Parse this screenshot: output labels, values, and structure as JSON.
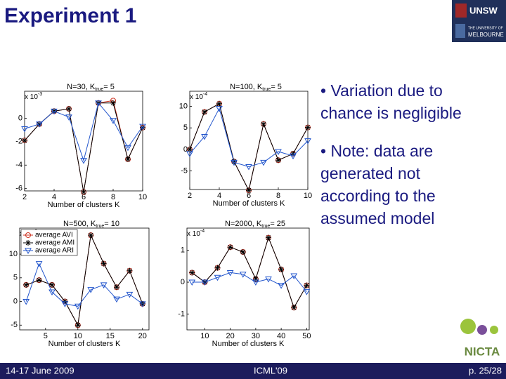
{
  "header": {
    "title": "Experiment 1"
  },
  "logos": {
    "unsw": "UNSW",
    "melbourne_line1": "THE UNIVERSITY OF",
    "melbourne_line2": "MELBOURNE",
    "nicta": "NICTA"
  },
  "bullets": [
    "• Variation due to chance is negligible",
    "• Note: data are generated not according to the assumed model"
  ],
  "footer": {
    "date": "14-17 June 2009",
    "venue": "ICML'09",
    "page": "p. 25/28"
  },
  "chart_data": [
    {
      "type": "line",
      "title": "N=30, K",
      "title_sub": "true",
      "title_end": "= 5",
      "x_label": "Number of clusters K",
      "scale_label": "x 10",
      "scale_exponent": "-3",
      "x": [
        2,
        3,
        4,
        5,
        6,
        7,
        8,
        9,
        10
      ],
      "xlim": [
        2,
        10
      ],
      "xticks": [
        2,
        4,
        6,
        8,
        10
      ],
      "ylim": [
        -6.2,
        2.3
      ],
      "yticks": [
        -6,
        -4,
        -2,
        0
      ],
      "series": [
        {
          "color": "#cc3322",
          "marker": "circle",
          "values": [
            -1.9,
            -0.5,
            0.6,
            0.8,
            -6.3,
            1.3,
            1.5,
            -3.5,
            -0.8
          ]
        },
        {
          "color": "#000000",
          "marker": "star",
          "values": [
            -1.9,
            -0.5,
            0.6,
            0.8,
            -6.3,
            1.3,
            1.3,
            -3.5,
            -0.8
          ]
        },
        {
          "color": "#2255cc",
          "marker": "triangle",
          "values": [
            -0.9,
            -0.5,
            0.6,
            0.1,
            -3.6,
            1.3,
            -0.2,
            -2.5,
            -0.7
          ]
        }
      ]
    },
    {
      "type": "line",
      "title": "N=100, K",
      "title_sub": "true",
      "title_end": "= 5",
      "x_label": "Number of clusters K",
      "scale_label": "x 10",
      "scale_exponent": "-4",
      "x": [
        2,
        3,
        4,
        5,
        6,
        7,
        8,
        9,
        10
      ],
      "xlim": [
        2,
        10
      ],
      "xticks": [
        2,
        4,
        6,
        8,
        10
      ],
      "ylim": [
        -9.3,
        13.5
      ],
      "yticks": [
        -5,
        0,
        5,
        10
      ],
      "series": [
        {
          "color": "#cc3322",
          "marker": "circle",
          "values": [
            0,
            8.7,
            10.6,
            -2.8,
            -9.5,
            5.9,
            -2.5,
            -1,
            5.1
          ]
        },
        {
          "color": "#000000",
          "marker": "star",
          "values": [
            0,
            8.7,
            10.6,
            -2.8,
            -9.5,
            5.9,
            -2.5,
            -1,
            5.1
          ]
        },
        {
          "color": "#2255cc",
          "marker": "triangle",
          "values": [
            -1,
            3,
            9.5,
            -3,
            -4,
            -3,
            -0.5,
            -1.5,
            2
          ]
        }
      ]
    },
    {
      "type": "line",
      "title": "N=500, K",
      "title_sub": "true",
      "title_end": "= 10",
      "x_label": "Number of clusters K",
      "scale_label": "x 10",
      "scale_exponent": "-3",
      "x": [
        2,
        4,
        6,
        8,
        10,
        12,
        14,
        16,
        18,
        20
      ],
      "xlim": [
        1,
        21
      ],
      "xticks": [
        5,
        10,
        15,
        20
      ],
      "ylim": [
        -6,
        15.5
      ],
      "yticks": [
        -5,
        0,
        5,
        10
      ],
      "legend": "upper left",
      "series": [
        {
          "name": "average AVI",
          "color": "#cc3322",
          "marker": "circle",
          "values": [
            3.5,
            4.5,
            3.5,
            0,
            -5,
            14,
            8,
            3,
            6.5,
            -0.5
          ]
        },
        {
          "name": "average AMI",
          "color": "#000000",
          "marker": "star",
          "values": [
            3.5,
            4.5,
            3.5,
            0,
            -5,
            14,
            8,
            3,
            6.5,
            -0.5
          ]
        },
        {
          "name": "average ARI",
          "color": "#2255cc",
          "marker": "triangle",
          "values": [
            0,
            8,
            2,
            -0.5,
            -1,
            2.5,
            3.5,
            0.5,
            1.5,
            -0.5
          ]
        }
      ]
    },
    {
      "type": "line",
      "title": "N=2000, K",
      "title_sub": "true",
      "title_end": "= 25",
      "x_label": "Number of clusters K",
      "scale_label": "x 10",
      "scale_exponent": "-4",
      "x": [
        5,
        10,
        15,
        20,
        25,
        30,
        35,
        40,
        45,
        50
      ],
      "xlim": [
        3,
        51
      ],
      "xticks": [
        10,
        20,
        30,
        40,
        50
      ],
      "ylim": [
        -1.5,
        1.7
      ],
      "yticks": [
        -1,
        0,
        1
      ],
      "series": [
        {
          "color": "#cc3322",
          "marker": "circle",
          "values": [
            0.3,
            0,
            0.45,
            1.1,
            0.95,
            0.1,
            1.4,
            0.4,
            -0.8,
            -0.1
          ]
        },
        {
          "color": "#000000",
          "marker": "star",
          "values": [
            0.3,
            0,
            0.45,
            1.1,
            0.95,
            0.1,
            1.4,
            0.4,
            -0.8,
            -0.1
          ]
        },
        {
          "color": "#2255cc",
          "marker": "triangle",
          "values": [
            0,
            0,
            0.15,
            0.3,
            0.25,
            0,
            0.1,
            -0.1,
            0.2,
            -0.3
          ]
        }
      ]
    }
  ]
}
